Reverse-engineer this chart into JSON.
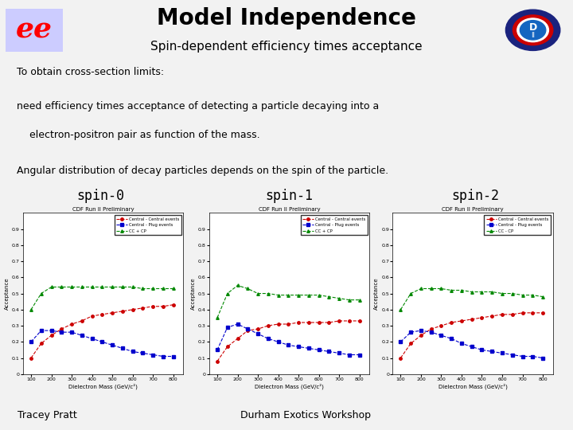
{
  "title": "Model Independence",
  "subtitle": "Spin-dependent efficiency times acceptance",
  "text_lines": [
    "To obtain cross-section limits:",
    "need efficiency times acceptance of detecting a particle decaying into a",
    "    electron-positron pair as function of the mass.",
    "Angular distribution of decay particles depends on the spin of the particle."
  ],
  "spin_labels": [
    "spin-0",
    "spin-1",
    "spin-2"
  ],
  "plot_title": "CDF Run II Preliminary",
  "x_label": "Dielectron Mass (GeV/c²)",
  "y_label": "Acceptance",
  "x_ticks": [
    100,
    200,
    300,
    400,
    500,
    600,
    700,
    800
  ],
  "legend_entries": [
    "Central - Central events",
    "Central - Plug events",
    "CC + CP"
  ],
  "legend_entry_spin2_cccp": "CC - CP",
  "mass_x": [
    100,
    150,
    200,
    250,
    300,
    350,
    400,
    450,
    500,
    550,
    600,
    650,
    700,
    750,
    800
  ],
  "spin0_cc": [
    0.1,
    0.19,
    0.24,
    0.28,
    0.31,
    0.33,
    0.36,
    0.37,
    0.38,
    0.39,
    0.4,
    0.41,
    0.42,
    0.42,
    0.43
  ],
  "spin0_cp": [
    0.2,
    0.27,
    0.27,
    0.26,
    0.26,
    0.24,
    0.22,
    0.2,
    0.18,
    0.16,
    0.14,
    0.13,
    0.12,
    0.11,
    0.11
  ],
  "spin0_cccp": [
    0.4,
    0.5,
    0.54,
    0.54,
    0.54,
    0.54,
    0.54,
    0.54,
    0.54,
    0.54,
    0.54,
    0.53,
    0.53,
    0.53,
    0.53
  ],
  "spin1_cc": [
    0.08,
    0.17,
    0.22,
    0.27,
    0.28,
    0.3,
    0.31,
    0.31,
    0.32,
    0.32,
    0.32,
    0.32,
    0.33,
    0.33,
    0.33
  ],
  "spin1_cp": [
    0.15,
    0.29,
    0.31,
    0.28,
    0.25,
    0.22,
    0.2,
    0.18,
    0.17,
    0.16,
    0.15,
    0.14,
    0.13,
    0.12,
    0.12
  ],
  "spin1_cccp": [
    0.35,
    0.5,
    0.55,
    0.53,
    0.5,
    0.5,
    0.49,
    0.49,
    0.49,
    0.49,
    0.49,
    0.48,
    0.47,
    0.46,
    0.46
  ],
  "spin2_cc": [
    0.1,
    0.19,
    0.24,
    0.28,
    0.3,
    0.32,
    0.33,
    0.34,
    0.35,
    0.36,
    0.37,
    0.37,
    0.38,
    0.38,
    0.38
  ],
  "spin2_cp": [
    0.2,
    0.26,
    0.27,
    0.26,
    0.24,
    0.22,
    0.19,
    0.17,
    0.15,
    0.14,
    0.13,
    0.12,
    0.11,
    0.11,
    0.1
  ],
  "spin2_cccp": [
    0.4,
    0.5,
    0.53,
    0.53,
    0.53,
    0.52,
    0.52,
    0.51,
    0.51,
    0.51,
    0.5,
    0.5,
    0.49,
    0.49,
    0.48
  ],
  "color_cc": "#cc0000",
  "color_cp": "#0000cc",
  "color_cccp": "#008800",
  "footer_left": "Tracey Pratt",
  "footer_right": "Durham Exotics Workshop",
  "bg_color": "#f2f2f2"
}
